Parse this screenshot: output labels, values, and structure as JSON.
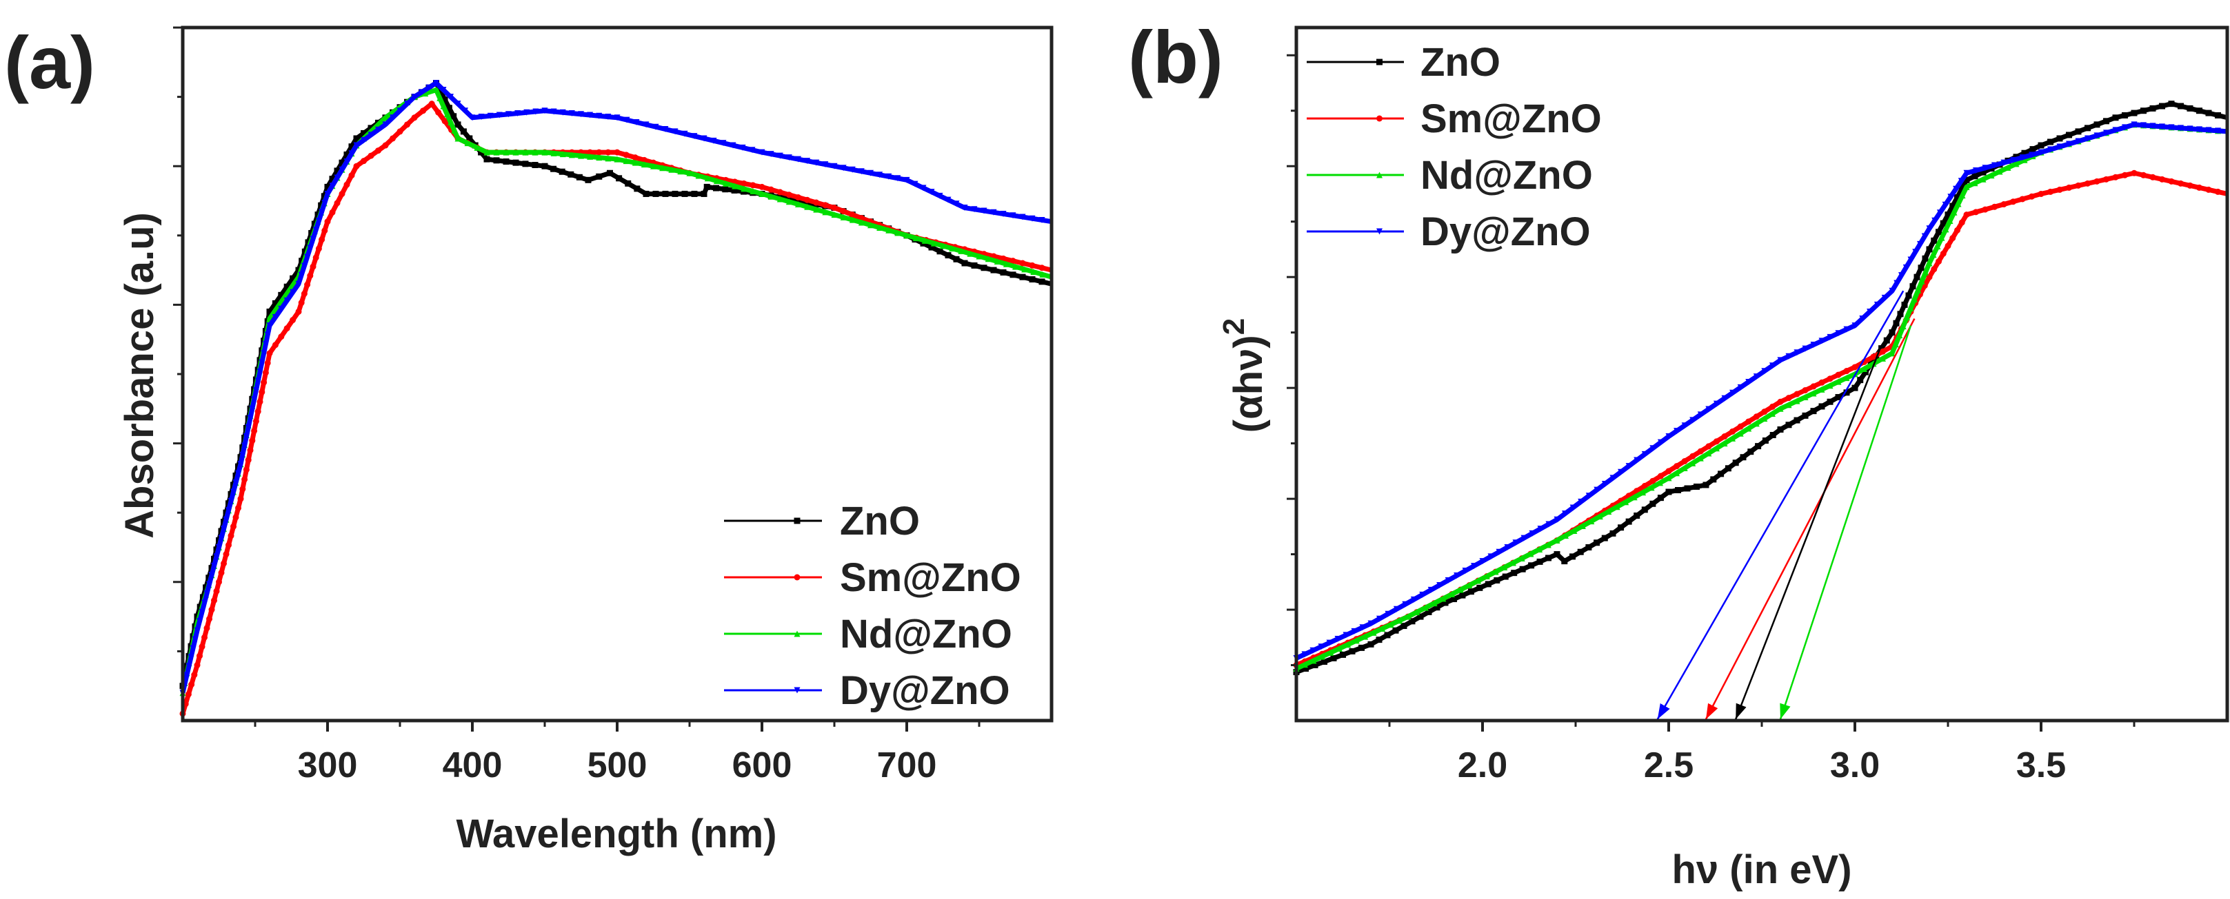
{
  "chart_data": [
    {
      "panel_label": "(a)",
      "type": "line",
      "title": "",
      "xlabel": "Wavelength (nm)",
      "ylabel": "Absorbance (a.u)",
      "xlim": [
        200,
        800
      ],
      "ylim": [
        0,
        1
      ],
      "xticks": [
        300,
        400,
        500,
        600,
        700
      ],
      "xtick_labels": [
        "300",
        "400",
        "500",
        "600",
        "700"
      ],
      "x_minor_ticks": [
        250,
        350,
        450,
        550,
        650,
        750
      ],
      "yticks": [
        0.1,
        0.2,
        0.3,
        0.4,
        0.5,
        0.6,
        0.7,
        0.8,
        0.9,
        1.0
      ],
      "legend_position": "bottom-right",
      "grid": false,
      "series": [
        {
          "name": "ZnO",
          "color": "#000000",
          "marker": "square",
          "x": [
            200,
            210,
            220,
            240,
            260,
            280,
            300,
            320,
            340,
            360,
            375,
            390,
            410,
            450,
            480,
            495,
            520,
            560,
            562,
            600,
            650,
            700,
            740,
            800
          ],
          "y": [
            0.05,
            0.15,
            0.22,
            0.38,
            0.59,
            0.65,
            0.77,
            0.84,
            0.87,
            0.9,
            0.92,
            0.86,
            0.81,
            0.8,
            0.78,
            0.79,
            0.76,
            0.76,
            0.77,
            0.76,
            0.74,
            0.7,
            0.66,
            0.63
          ]
        },
        {
          "name": "Sm@ZnO",
          "color": "#ff0000",
          "marker": "circle",
          "x": [
            200,
            210,
            220,
            240,
            260,
            280,
            300,
            320,
            340,
            360,
            372,
            390,
            410,
            450,
            500,
            550,
            600,
            650,
            700,
            800
          ],
          "y": [
            0.01,
            0.08,
            0.16,
            0.32,
            0.53,
            0.59,
            0.72,
            0.8,
            0.83,
            0.87,
            0.89,
            0.84,
            0.82,
            0.82,
            0.82,
            0.79,
            0.77,
            0.74,
            0.7,
            0.65
          ]
        },
        {
          "name": "Nd@ZnO",
          "color": "#00dd00",
          "marker": "triangle-up",
          "x": [
            200,
            210,
            220,
            240,
            260,
            280,
            300,
            320,
            340,
            360,
            375,
            390,
            410,
            450,
            500,
            550,
            600,
            650,
            700,
            800
          ],
          "y": [
            0.04,
            0.14,
            0.21,
            0.37,
            0.58,
            0.64,
            0.76,
            0.83,
            0.87,
            0.9,
            0.91,
            0.84,
            0.82,
            0.82,
            0.81,
            0.79,
            0.76,
            0.73,
            0.7,
            0.64
          ]
        },
        {
          "name": "Dy@ZnO",
          "color": "#0000ff",
          "marker": "triangle-down",
          "x": [
            200,
            210,
            220,
            240,
            260,
            280,
            300,
            320,
            340,
            360,
            375,
            390,
            400,
            450,
            500,
            560,
            600,
            650,
            700,
            740,
            800
          ],
          "y": [
            0.04,
            0.13,
            0.21,
            0.37,
            0.57,
            0.63,
            0.76,
            0.83,
            0.86,
            0.9,
            0.92,
            0.89,
            0.87,
            0.88,
            0.87,
            0.84,
            0.82,
            0.8,
            0.78,
            0.74,
            0.72
          ]
        }
      ]
    },
    {
      "panel_label": "(b)",
      "type": "line",
      "title": "",
      "xlabel": "hν (in eV)",
      "ylabel": "(αhν)",
      "ylabel_superscript": "2",
      "xlim": [
        1.5,
        4.0
      ],
      "ylim": [
        0,
        1
      ],
      "xticks": [
        2.0,
        2.5,
        3.0,
        3.5
      ],
      "xtick_labels": [
        "2.0",
        "2.5",
        "3.0",
        "3.5"
      ],
      "x_minor_ticks": [
        1.75,
        2.25,
        2.75,
        3.25,
        3.75
      ],
      "yticks": [
        0.08,
        0.16,
        0.24,
        0.32,
        0.4,
        0.48,
        0.56,
        0.64,
        0.72,
        0.8,
        0.88,
        0.96
      ],
      "legend_position": "top-left",
      "grid": false,
      "series": [
        {
          "name": "ZnO",
          "color": "#000000",
          "marker": "square",
          "x": [
            1.5,
            1.7,
            1.9,
            2.2,
            2.22,
            2.35,
            2.5,
            2.6,
            2.8,
            3.0,
            3.1,
            3.2,
            3.3,
            3.5,
            3.7,
            3.85,
            4.0
          ],
          "y": [
            0.07,
            0.11,
            0.17,
            0.24,
            0.23,
            0.27,
            0.33,
            0.34,
            0.42,
            0.48,
            0.56,
            0.68,
            0.78,
            0.83,
            0.87,
            0.89,
            0.87
          ]
        },
        {
          "name": "Sm@ZnO",
          "color": "#ff0000",
          "marker": "circle",
          "x": [
            1.5,
            1.8,
            2.2,
            2.5,
            2.8,
            3.0,
            3.1,
            3.2,
            3.3,
            3.5,
            3.75,
            4.0
          ],
          "y": [
            0.08,
            0.15,
            0.26,
            0.36,
            0.46,
            0.51,
            0.54,
            0.64,
            0.73,
            0.76,
            0.79,
            0.76
          ]
        },
        {
          "name": "Nd@ZnO",
          "color": "#00dd00",
          "marker": "triangle-up",
          "x": [
            1.5,
            1.8,
            2.2,
            2.5,
            2.8,
            3.0,
            3.1,
            3.2,
            3.3,
            3.5,
            3.75,
            4.0
          ],
          "y": [
            0.075,
            0.15,
            0.26,
            0.35,
            0.45,
            0.5,
            0.53,
            0.66,
            0.77,
            0.82,
            0.86,
            0.85
          ]
        },
        {
          "name": "Dy@ZnO",
          "color": "#0000ff",
          "marker": "triangle-down",
          "x": [
            1.5,
            1.7,
            2.0,
            2.2,
            2.5,
            2.8,
            3.0,
            3.1,
            3.2,
            3.3,
            3.5,
            3.75,
            4.0
          ],
          "y": [
            0.09,
            0.14,
            0.23,
            0.29,
            0.41,
            0.52,
            0.57,
            0.62,
            0.71,
            0.79,
            0.82,
            0.86,
            0.85
          ]
        }
      ],
      "band_gap_arrows": [
        {
          "series": "Dy@ZnO",
          "color": "#0000ff",
          "from": [
            3.13,
            0.62
          ],
          "to_x": 2.47
        },
        {
          "series": "Sm@ZnO",
          "color": "#ff0000",
          "from": [
            3.16,
            0.58
          ],
          "to_x": 2.6
        },
        {
          "series": "ZnO",
          "color": "#000000",
          "from": [
            3.07,
            0.54
          ],
          "to_x": 2.68
        },
        {
          "series": "Nd@ZnO",
          "color": "#00dd00",
          "from": [
            3.15,
            0.57
          ],
          "to_x": 2.8
        }
      ]
    }
  ]
}
